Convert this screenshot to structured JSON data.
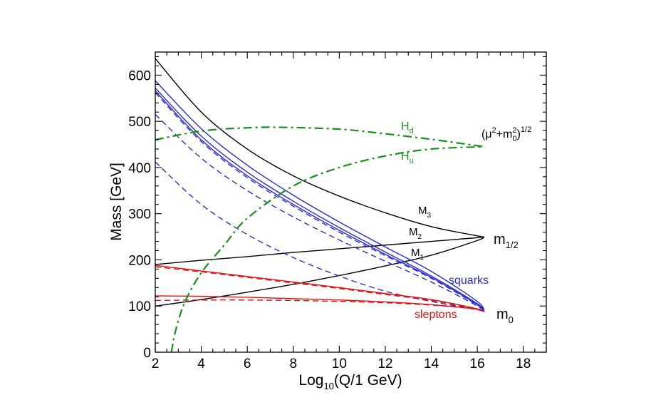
{
  "chart_data": {
    "type": "line",
    "title": "",
    "xlabel": "Log",
    "xlabel_sub": "10",
    "xlabel_tail": "(Q/1 GeV)",
    "ylabel": "Mass  [GeV]",
    "xlim": [
      2,
      19
    ],
    "ylim": [
      0,
      650
    ],
    "xticks": [
      2,
      4,
      6,
      8,
      10,
      12,
      14,
      16,
      18
    ],
    "yticks": [
      0,
      100,
      200,
      300,
      400,
      500,
      600
    ],
    "grid": false,
    "colors": {
      "black": "#000000",
      "blue": "#2b2bd6",
      "red": "#e01010",
      "green": "#1a8f1a"
    },
    "series": [
      {
        "name": "M3",
        "color": "black",
        "dash": "solid",
        "x": [
          2,
          4,
          6,
          8,
          10,
          12,
          14,
          16,
          16.3
        ],
        "y": [
          636,
          520,
          440,
          382,
          338,
          302,
          272,
          252,
          250
        ]
      },
      {
        "name": "M2",
        "color": "black",
        "dash": "solid",
        "x": [
          2,
          4,
          6,
          8,
          10,
          12,
          14,
          16,
          16.3
        ],
        "y": [
          190,
          199,
          207,
          216,
          224,
          232,
          240,
          248,
          250
        ]
      },
      {
        "name": "M1",
        "color": "black",
        "dash": "solid",
        "x": [
          2,
          4,
          6,
          8,
          10,
          12,
          14,
          16,
          16.3
        ],
        "y": [
          100,
          114,
          130,
          147,
          166,
          187,
          210,
          242,
          250
        ]
      },
      {
        "name": "squark 1",
        "color": "blue",
        "dash": "solid",
        "x": [
          2,
          4,
          6,
          8,
          10,
          12,
          14,
          16,
          16.3
        ],
        "y": [
          588,
          484,
          405,
          340,
          282,
          228,
          175,
          110,
          87
        ]
      },
      {
        "name": "squark 2",
        "color": "blue",
        "dash": "solid",
        "x": [
          2,
          4,
          6,
          8,
          10,
          12,
          14,
          16,
          16.3
        ],
        "y": [
          572,
          468,
          390,
          327,
          270,
          217,
          165,
          105,
          87
        ]
      },
      {
        "name": "squark 3",
        "color": "blue",
        "dash": "solid",
        "x": [
          2,
          4,
          6,
          8,
          10,
          12,
          14,
          16,
          16.3
        ],
        "y": [
          566,
          460,
          382,
          320,
          264,
          212,
          162,
          103,
          87
        ]
      },
      {
        "name": "squark 4",
        "color": "blue",
        "dash": "dashed",
        "x": [
          2,
          4,
          6,
          8,
          10,
          12,
          14,
          16,
          16.3
        ],
        "y": [
          562,
          456,
          378,
          316,
          260,
          209,
          160,
          102,
          87
        ]
      },
      {
        "name": "squark 5",
        "color": "blue",
        "dash": "dashed",
        "x": [
          2,
          4,
          6,
          8,
          10,
          12,
          14,
          16,
          16.3
        ],
        "y": [
          515,
          420,
          350,
          293,
          243,
          197,
          152,
          100,
          87
        ]
      },
      {
        "name": "squark 6",
        "color": "blue",
        "dash": "dashed",
        "x": [
          2,
          4,
          6,
          8,
          10,
          12,
          14,
          16,
          16.3
        ],
        "y": [
          412,
          320,
          255,
          205,
          165,
          132,
          110,
          92,
          87
        ]
      },
      {
        "name": "slepton 1",
        "color": "red",
        "dash": "solid",
        "x": [
          2,
          4,
          6,
          8,
          10,
          12,
          14,
          16,
          16.3
        ],
        "y": [
          188,
          176,
          164,
          152,
          140,
          127,
          114,
          94,
          87
        ]
      },
      {
        "name": "slepton 2",
        "color": "red",
        "dash": "dashed",
        "x": [
          2,
          4,
          6,
          8,
          10,
          12,
          14,
          16,
          16.3
        ],
        "y": [
          185,
          174,
          162,
          150,
          138,
          125,
          112,
          93,
          87
        ]
      },
      {
        "name": "slepton 3",
        "color": "red",
        "dash": "solid",
        "x": [
          2,
          4,
          6,
          8,
          10,
          12,
          14,
          16,
          16.3
        ],
        "y": [
          122,
          121,
          119,
          116,
          113,
          109,
          103,
          93,
          87
        ]
      },
      {
        "name": "slepton 4",
        "color": "red",
        "dash": "dashed",
        "x": [
          2,
          4,
          6,
          8,
          10,
          12,
          14,
          16,
          16.3
        ],
        "y": [
          112,
          113,
          113,
          112,
          110,
          107,
          102,
          93,
          87
        ]
      },
      {
        "name": "Hd",
        "color": "green",
        "dash": "dashdot",
        "x": [
          2,
          4,
          6,
          7.5,
          10,
          12,
          14,
          16.3
        ],
        "y": [
          460,
          479,
          486,
          487,
          483,
          473,
          461,
          445
        ]
      },
      {
        "name": "Hu",
        "color": "green",
        "dash": "dashdot",
        "x": [
          2.7,
          2.9,
          3.3,
          4,
          5,
          6,
          8,
          10,
          12,
          14,
          16.3
        ],
        "y": [
          0,
          50,
          110,
          172,
          232,
          290,
          360,
          400,
          425,
          440,
          445
        ]
      }
    ],
    "annotations": {
      "Hd": "H",
      "Hd_sub": "d",
      "Hu": "H",
      "Hu_sub": "u",
      "mu_label": "(μ",
      "mu_sup2": "2",
      "mu_plus": "+m",
      "mu_sub0": "0",
      "mu_sup_2b": "2",
      "mu_close": ")",
      "mu_sup_half": "1/2",
      "M3": "M",
      "M3_sub": "3",
      "M2": "M",
      "M2_sub": "2",
      "M1": "M",
      "M1_sub": "1",
      "m_half": "m",
      "m_half_sub": "1/2",
      "squarks": "squarks",
      "sleptons": "sleptons",
      "m0": "m",
      "m0_sub": "0"
    }
  }
}
